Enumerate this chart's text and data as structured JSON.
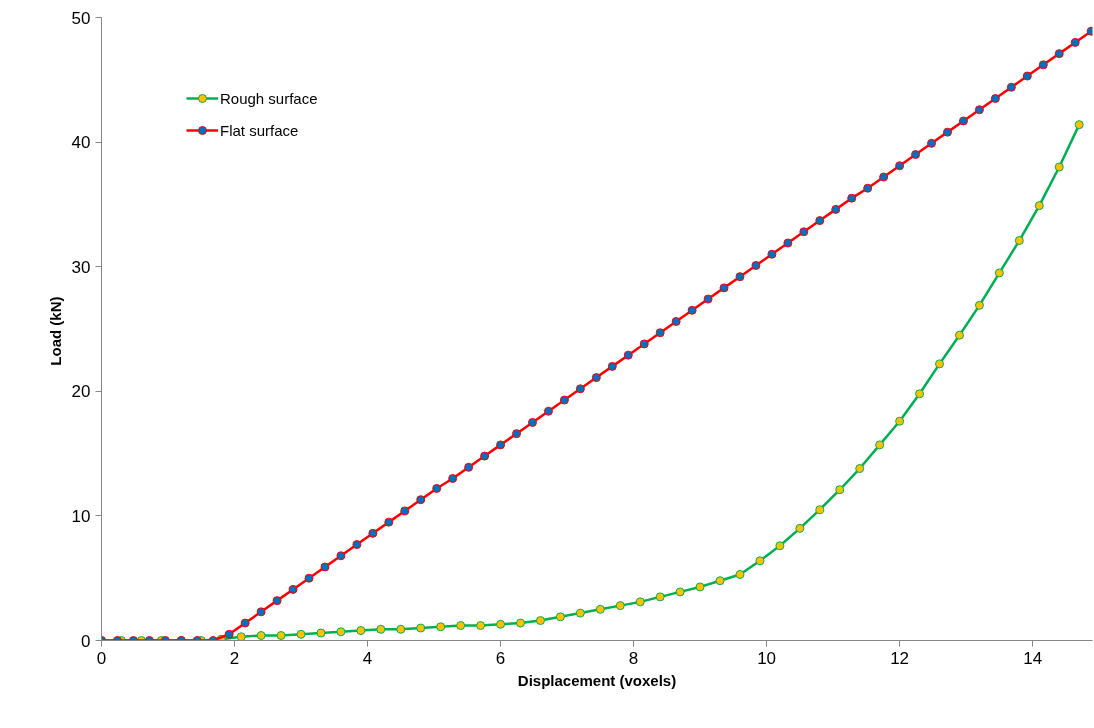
{
  "chart_data": {
    "type": "line",
    "xlabel": "Displacement (voxels)",
    "ylabel": "Load  (kN)",
    "xlim": [
      0,
      14.9
    ],
    "xticks": [
      0,
      2,
      4,
      6,
      8,
      10,
      12,
      14
    ],
    "ylim": [
      0,
      50
    ],
    "yticks": [
      0,
      10,
      20,
      30,
      40,
      50
    ],
    "grid": false,
    "legend": "top left",
    "marker": "circle",
    "line_style": "solid",
    "series": [
      {
        "name": "Rough surface",
        "color": "#00b050",
        "x": [
          0,
          0.3,
          0.6,
          0.9,
          1.2,
          1.5,
          1.8,
          2.1,
          2.4,
          2.7,
          3.0,
          3.3,
          3.6,
          3.9,
          4.2,
          4.5,
          4.8,
          5.1,
          5.4,
          5.7,
          6.0,
          6.3,
          6.6,
          6.9,
          7.2,
          7.5,
          7.8,
          8.1,
          8.4,
          8.7,
          9.0,
          9.3,
          9.6,
          9.9,
          10.2,
          10.5,
          10.8,
          11.1,
          11.4,
          11.7,
          12.0,
          12.3,
          12.6,
          12.9,
          13.2,
          13.5,
          13.8,
          14.1,
          14.4,
          14.7
        ],
        "values": [
          0,
          0,
          0,
          0,
          0,
          0,
          0.1,
          0.3,
          0.4,
          0.4,
          0.5,
          0.6,
          0.7,
          0.8,
          0.9,
          0.9,
          1.0,
          1.1,
          1.2,
          1.2,
          1.3,
          1.4,
          1.6,
          1.9,
          2.2,
          2.5,
          2.8,
          3.1,
          3.5,
          3.9,
          4.3,
          4.8,
          5.3,
          6.4,
          7.6,
          9.0,
          10.5,
          12.1,
          13.8,
          15.7,
          17.6,
          19.8,
          22.2,
          24.5,
          26.9,
          29.5,
          32.1,
          34.9,
          38.0,
          41.4
        ]
      },
      {
        "name": "Flat surface",
        "color": "#ff0000",
        "x": [
          0,
          0.24,
          0.48,
          0.72,
          0.96,
          1.2,
          1.44,
          1.68,
          1.92,
          2.16,
          2.4,
          2.64,
          2.88,
          3.12,
          3.36,
          3.6,
          3.84,
          4.08,
          4.32,
          4.56,
          4.8,
          5.04,
          5.28,
          5.52,
          5.76,
          6.0,
          6.24,
          6.48,
          6.72,
          6.96,
          7.2,
          7.44,
          7.68,
          7.92,
          8.16,
          8.4,
          8.64,
          8.88,
          9.12,
          9.36,
          9.6,
          9.84,
          10.08,
          10.32,
          10.56,
          10.8,
          11.04,
          11.28,
          11.52,
          11.76,
          12.0,
          12.24,
          12.48,
          12.72,
          12.96,
          13.2,
          13.44,
          13.68,
          13.92,
          14.16,
          14.4,
          14.64,
          14.88
        ],
        "values": [
          0,
          0,
          0,
          0,
          0,
          0,
          0,
          0,
          0.5,
          1.4,
          2.3,
          3.2,
          4.1,
          5.0,
          5.9,
          6.8,
          7.7,
          8.6,
          9.5,
          10.4,
          11.3,
          12.2,
          13.0,
          13.9,
          14.8,
          15.7,
          16.6,
          17.5,
          18.4,
          19.3,
          20.2,
          21.1,
          22.0,
          22.9,
          23.8,
          24.7,
          25.6,
          26.5,
          27.4,
          28.3,
          29.2,
          30.1,
          31.0,
          31.9,
          32.8,
          33.7,
          34.6,
          35.5,
          36.3,
          37.2,
          38.1,
          39.0,
          39.9,
          40.8,
          41.7,
          42.6,
          43.5,
          44.4,
          45.3,
          46.2,
          47.1,
          48.0,
          48.9
        ]
      }
    ]
  }
}
